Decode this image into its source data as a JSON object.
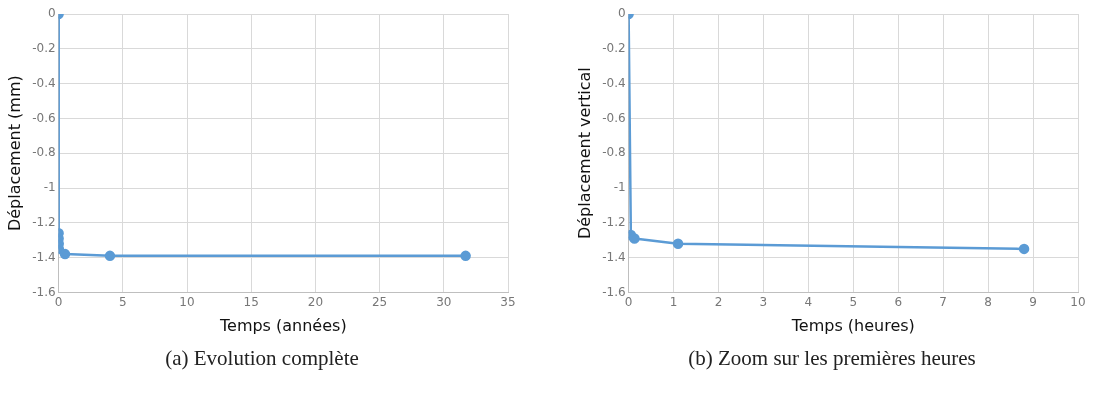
{
  "chart_data": [
    {
      "type": "line",
      "xlabel": "Temps (années)",
      "ylabel": "Déplacement (mm)",
      "annotations": [
        "(a) Evolution complète"
      ],
      "x": [
        0,
        0,
        0.001,
        0.01,
        0.02,
        0.5,
        4,
        31.7
      ],
      "series": [
        {
          "color": "#5b9bd5",
          "values": [
            0,
            -1.26,
            -1.29,
            -1.32,
            -1.35,
            -1.38,
            -1.39,
            -1.39
          ]
        }
      ],
      "xlim": [
        0,
        35
      ],
      "xticks": [
        0,
        5,
        10,
        15,
        20,
        25,
        30,
        35
      ],
      "ylim": [
        -1.6,
        0
      ],
      "yticks": [
        -1.6,
        -1.4,
        -1.2,
        -1,
        -0.8,
        -0.6,
        -0.4,
        -0.2,
        0
      ],
      "grid": true,
      "marker": "circle",
      "line_style": "solid",
      "legend": false
    },
    {
      "type": "line",
      "xlabel": "Temps (heures)",
      "ylabel": "Déplacement vertical",
      "annotations": [
        "(b) Zoom sur les premières heures"
      ],
      "x": [
        0,
        0.05,
        0.13,
        1.1,
        8.8
      ],
      "series": [
        {
          "color": "#5b9bd5",
          "values": [
            0,
            -1.27,
            -1.29,
            -1.32,
            -1.35
          ]
        }
      ],
      "xlim": [
        0,
        10
      ],
      "xticks": [
        0,
        1,
        2,
        3,
        4,
        5,
        6,
        7,
        8,
        9,
        10
      ],
      "ylim": [
        -1.6,
        0
      ],
      "yticks": [
        -1.6,
        -1.4,
        -1.2,
        -1,
        -0.8,
        -0.6,
        -0.4,
        -0.2,
        0
      ],
      "grid": true,
      "marker": "circle",
      "line_style": "solid",
      "legend": false
    }
  ]
}
